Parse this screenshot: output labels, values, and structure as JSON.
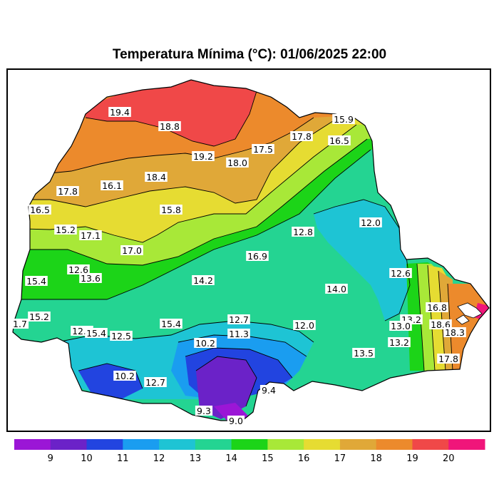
{
  "title": "Temperatura Mínima (°C): 01/06/2025 22:00",
  "colorbar": {
    "ticks": [
      "9",
      "10",
      "11",
      "12",
      "13",
      "14",
      "15",
      "16",
      "17",
      "18",
      "19",
      "20"
    ],
    "colors": [
      "#9b16d6",
      "#6b22c8",
      "#2244e0",
      "#1a9df0",
      "#1ec4d4",
      "#24d492",
      "#1cd418",
      "#a8e838",
      "#e6dc32",
      "#e0a838",
      "#ec8a2c",
      "#f04848",
      "#f0157a"
    ]
  },
  "contour_labels": [
    "19.4",
    "18.8",
    "19.2",
    "18.0",
    "17.5",
    "17.8",
    "15.9",
    "16.5",
    "18.4",
    "16.1",
    "17.8",
    "16.5",
    "15.8",
    "15.2",
    "17.1",
    "17.0",
    "12.0",
    "12.8",
    "16.9",
    "12.6",
    "15.4",
    "13.6",
    "14.2",
    "12.6",
    "14.0",
    "15.2",
    "1.7",
    "12.7",
    "15.4",
    "12.5",
    "15.4",
    "12.7",
    "11.3",
    "12.0",
    "10.2",
    "13.5",
    "13.2",
    "13.0",
    "16.8",
    "18.6",
    "18.3",
    "13.2",
    "17.8",
    "10.2",
    "12.7",
    "9.4",
    "9.3",
    "9.0"
  ]
}
